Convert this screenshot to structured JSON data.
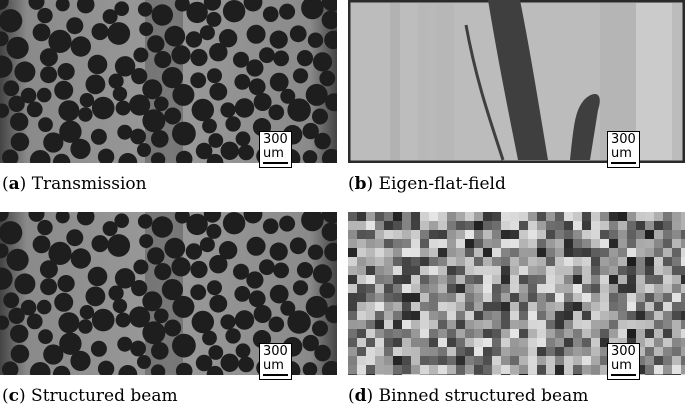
{
  "figure": {
    "panels": [
      {
        "letter": "a",
        "title": "Transmission",
        "scalebar": "300 um"
      },
      {
        "letter": "b",
        "title": "Eigen-flat-field",
        "scalebar": "300 um"
      },
      {
        "letter": "c",
        "title": "Structured beam",
        "scalebar": "300 um"
      },
      {
        "letter": "d",
        "title": "Binned structured beam",
        "scalebar": "300 um"
      }
    ]
  },
  "colors": {
    "background": "#ffffff",
    "particle_dark": "#1e1e1e",
    "matrix_gray": "#9a9a9a",
    "flatfield_light": "#bcbcbc",
    "flatfield_dark": "#3f3f3f"
  }
}
